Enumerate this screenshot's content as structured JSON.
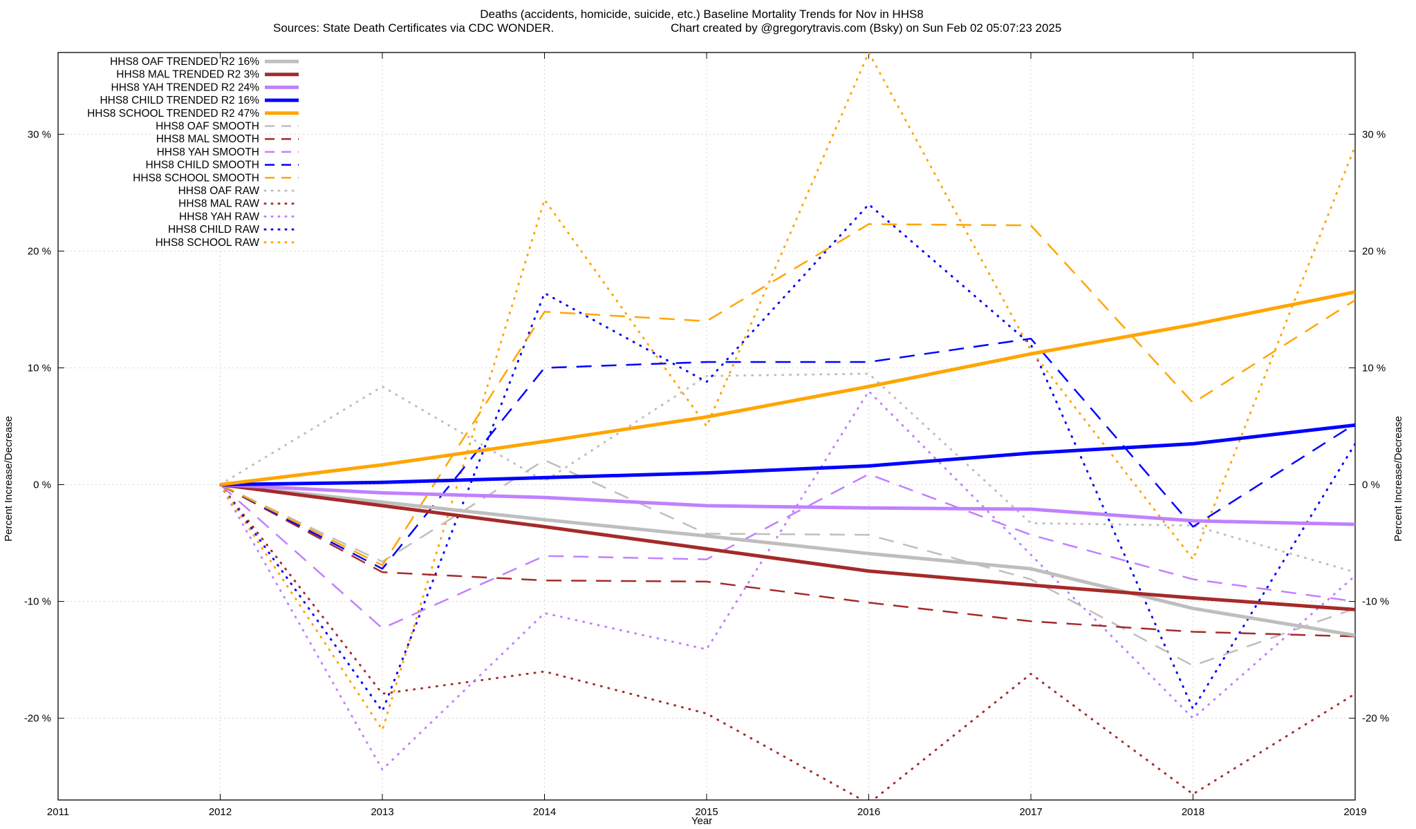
{
  "chart_data": {
    "type": "line",
    "title_line1": "Deaths (accidents, homicide, suicide, etc.)  Baseline Mortality Trends for Nov in HHS8",
    "title_line2_left": "Sources: State Death Certificates via CDC WONDER.",
    "title_line2_right": "Chart created by @gregorytravis.com (Bsky) on Sun Feb 02 05:07:23 2025",
    "xlabel": "Year",
    "ylabel_left": "Percent Increase/Decrease",
    "ylabel_right": "Percent Increase/Decrease",
    "xlim": [
      2011,
      2019
    ],
    "ylim": [
      -27,
      37
    ],
    "grid": true,
    "legend_position": "top-left",
    "x_ticks": [
      2011,
      2012,
      2013,
      2014,
      2015,
      2016,
      2017,
      2018,
      2019
    ],
    "x_tick_labels": [
      "2011",
      "2012",
      "2013",
      "2014",
      "2015",
      "2016",
      "2017",
      "2018",
      "2019"
    ],
    "y_ticks": [
      -20,
      -10,
      0,
      10,
      20,
      30
    ],
    "y_tick_labels": [
      "-20 %",
      "-10 %",
      "0 %",
      "10 %",
      "20 %",
      "30 %"
    ],
    "x": [
      2012,
      2013,
      2014,
      2015,
      2016,
      2017,
      2018,
      2019
    ],
    "series": [
      {
        "name": "HHS8 OAF TRENDED R2  16%",
        "color": "#bebebe",
        "style": "solid",
        "values": [
          0,
          -1.5,
          -3,
          -4.4,
          -5.9,
          -7.2,
          -10.6,
          -12.9
        ]
      },
      {
        "name": "HHS8 MAL TRENDED R2   3%",
        "color": "#a52a2a",
        "style": "solid",
        "values": [
          0,
          -1.8,
          -3.6,
          -5.5,
          -7.4,
          -8.6,
          -9.7,
          -10.7
        ]
      },
      {
        "name": "HHS8 YAH TRENDED R2  24%",
        "color": "#c080ff",
        "style": "solid",
        "values": [
          0,
          -0.7,
          -1.1,
          -1.8,
          -2.0,
          -2.1,
          -3.1,
          -3.4
        ]
      },
      {
        "name": "HHS8 CHILD TRENDED R2  16%",
        "color": "#0000ff",
        "style": "solid",
        "values": [
          0,
          0.2,
          0.6,
          1.0,
          1.6,
          2.7,
          3.5,
          5.1
        ]
      },
      {
        "name": "HHS8 SCHOOL TRENDED R2  47%",
        "color": "#ffa500",
        "style": "solid",
        "values": [
          0,
          1.7,
          3.7,
          5.8,
          8.4,
          11.2,
          13.7,
          16.5
        ]
      },
      {
        "name": "HHS8 OAF SMOOTH",
        "color": "#bebebe",
        "style": "dashed",
        "values": [
          0,
          -6.6,
          2.1,
          -4.2,
          -4.3,
          -8.1,
          -15.5,
          -10.6
        ]
      },
      {
        "name": "HHS8 MAL SMOOTH",
        "color": "#a52a2a",
        "style": "dashed",
        "values": [
          0,
          -7.5,
          -8.2,
          -8.3,
          -10.1,
          -11.7,
          -12.6,
          -13.0
        ]
      },
      {
        "name": "HHS8 YAH SMOOTH",
        "color": "#c080ff",
        "style": "dashed",
        "values": [
          0,
          -12.3,
          -6.1,
          -6.4,
          0.9,
          -4.3,
          -8.1,
          -10.0
        ]
      },
      {
        "name": "HHS8 CHILD SMOOTH",
        "color": "#0000ff",
        "style": "dashed",
        "values": [
          0,
          -7.2,
          10.0,
          10.5,
          10.5,
          12.5,
          -3.6,
          5.2
        ]
      },
      {
        "name": "HHS8 SCHOOL SMOOTH",
        "color": "#ffa500",
        "style": "dashed",
        "values": [
          0,
          -6.9,
          14.8,
          14.0,
          22.3,
          22.2,
          7.0,
          15.8
        ]
      },
      {
        "name": "HHS8 OAF RAW",
        "color": "#bebebe",
        "style": "dotted",
        "values": [
          0,
          8.4,
          0.3,
          9.3,
          9.5,
          -3.3,
          -3.5,
          -7.5
        ]
      },
      {
        "name": "HHS8 MAL RAW",
        "color": "#a52a2a",
        "style": "dotted",
        "values": [
          0,
          -17.9,
          -16.0,
          -19.6,
          -27.3,
          -16.2,
          -26.5,
          -17.9
        ]
      },
      {
        "name": "HHS8 YAH RAW",
        "color": "#c080ff",
        "style": "dotted",
        "values": [
          0,
          -24.4,
          -11.0,
          -14.1,
          8.0,
          -6.0,
          -20.0,
          -7.8
        ]
      },
      {
        "name": "HHS8 CHILD RAW",
        "color": "#0000ff",
        "style": "dotted",
        "values": [
          0,
          -19.4,
          16.4,
          8.8,
          24.0,
          12.0,
          -19.2,
          3.5
        ]
      },
      {
        "name": "HHS8 SCHOOL RAW",
        "color": "#ffa500",
        "style": "dotted",
        "values": [
          0,
          -21.0,
          24.4,
          5.0,
          37.0,
          11.5,
          -6.4,
          29.0
        ]
      }
    ]
  }
}
